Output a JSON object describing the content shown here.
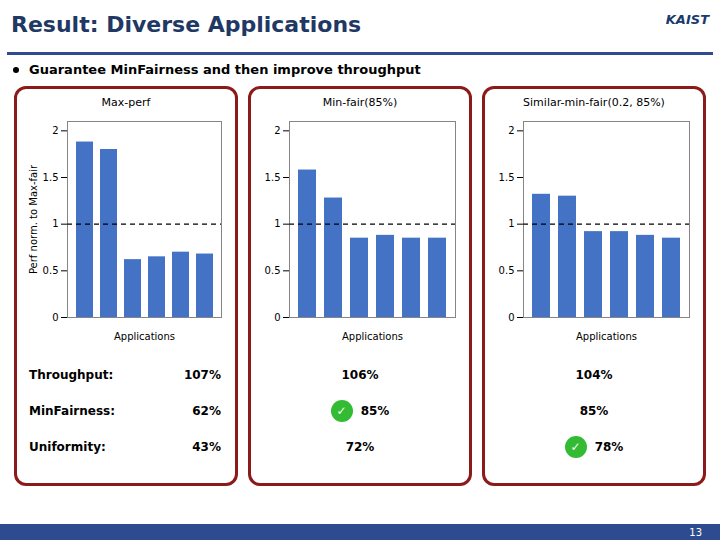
{
  "title": "Result: Diverse Applications",
  "subtitle": "Guarantee MinFairness and then improve throughput",
  "annotations": [
    "KAIST",
    "13"
  ],
  "chart_data": [
    {
      "type": "bar",
      "title": "Max-perf",
      "categories": [
        null,
        null,
        null,
        null,
        null,
        null
      ],
      "values": [
        1.88,
        1.8,
        0.62,
        0.65,
        0.7,
        0.68
      ],
      "color": "#4472C4",
      "xlabel": "Applications",
      "ylabel": "Perf norm. to Max-fair",
      "ylim": [
        0,
        2.1
      ],
      "yticks": [
        0,
        0.5,
        1,
        1.5,
        2
      ],
      "hline": 1,
      "tick_labels": "y",
      "annotations": [
        {
          "label": "Throughput:",
          "text": "107%"
        },
        {
          "label": "MinFairness:",
          "text": "62%"
        },
        {
          "label": "Uniformity:",
          "text": "43%"
        }
      ]
    },
    {
      "type": "bar",
      "title": "Min-fair(85%)",
      "categories": [
        null,
        null,
        null,
        null,
        null,
        null
      ],
      "values": [
        1.58,
        1.28,
        0.85,
        0.88,
        0.85,
        0.85
      ],
      "color": "#4472C4",
      "xlabel": "Applications",
      "ylim": [
        0,
        2.1
      ],
      "yticks": [
        0,
        0.5,
        1,
        1.5,
        2
      ],
      "hline": 1,
      "tick_labels": "y",
      "annotations": [
        {
          "text": "106%"
        },
        {
          "text": "85%",
          "symbol": "✓"
        },
        {
          "text": "72%"
        }
      ]
    },
    {
      "type": "bar",
      "title": "Similar-min-fair(0.2, 85%)",
      "categories": [
        null,
        null,
        null,
        null,
        null,
        null
      ],
      "values": [
        1.32,
        1.3,
        0.92,
        0.92,
        0.88,
        0.85
      ],
      "color": "#4472C4",
      "xlabel": "Applications",
      "ylim": [
        0,
        2.1
      ],
      "yticks": [
        0,
        0.5,
        1,
        1.5,
        2
      ],
      "hline": 1,
      "tick_labels": "y",
      "annotations": [
        {
          "text": "104%"
        },
        {
          "text": "85%"
        },
        {
          "text": "78%",
          "symbol": "✓"
        }
      ]
    }
  ]
}
